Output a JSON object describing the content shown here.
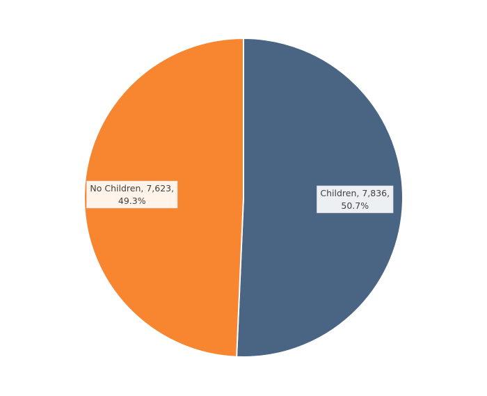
{
  "chart_data": {
    "type": "pie",
    "values": [
      7836,
      7623
    ],
    "value_labels": [
      "Children, 7,836,",
      "No Children, 7,623,"
    ],
    "percents": [
      50.7,
      49.3
    ],
    "percent_labels": [
      "50.7%",
      "49.3%"
    ],
    "colors": [
      "#4a6584",
      "#f8852f"
    ]
  }
}
